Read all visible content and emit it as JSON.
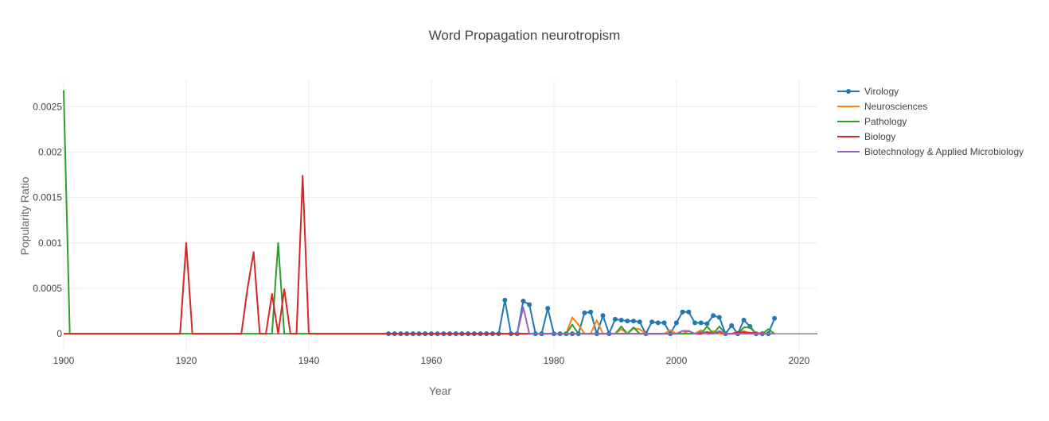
{
  "chart_data": {
    "type": "line",
    "title": "Word Propagation neurotropism",
    "xlabel": "Year",
    "ylabel": "Popularity Ratio",
    "xlim": [
      1900,
      2023
    ],
    "ylim": [
      -0.0002,
      0.0028
    ],
    "xticks": [
      1900,
      1920,
      1940,
      1960,
      1980,
      2000,
      2020
    ],
    "xtick_labels": [
      "1900",
      "1920",
      "1940",
      "1960",
      "1980",
      "2000",
      "2020"
    ],
    "yticks": [
      0,
      0.0005,
      0.001,
      0.0015,
      0.002,
      0.0025
    ],
    "ytick_labels": [
      "0",
      "0.0005",
      "0.001",
      "0.0015",
      "0.002",
      "0.0025"
    ],
    "grid": true,
    "legend_position": "top-right",
    "series": [
      {
        "name": "Virology",
        "color": "#1f77b4",
        "markers": true,
        "x": [
          1953,
          1954,
          1955,
          1956,
          1957,
          1958,
          1959,
          1960,
          1961,
          1962,
          1963,
          1964,
          1965,
          1966,
          1967,
          1968,
          1969,
          1970,
          1971,
          1972,
          1973,
          1974,
          1975,
          1976,
          1977,
          1978,
          1979,
          1980,
          1981,
          1982,
          1983,
          1984,
          1985,
          1986,
          1987,
          1988,
          1989,
          1990,
          1991,
          1992,
          1993,
          1994,
          1995,
          1996,
          1997,
          1998,
          1999,
          2000,
          2001,
          2002,
          2003,
          2004,
          2005,
          2006,
          2007,
          2008,
          2009,
          2010,
          2011,
          2012,
          2013,
          2014,
          2015,
          2016
        ],
        "y": [
          0,
          0,
          0,
          0,
          0,
          0,
          0,
          0,
          0,
          0,
          0,
          0,
          0,
          0,
          0,
          0,
          0,
          0,
          0,
          0.00037,
          0,
          0,
          0.00036,
          0.00032,
          0,
          0,
          0.00028,
          0,
          0,
          0,
          0,
          0,
          0.00023,
          0.00024,
          0,
          0.0002,
          0,
          0.00016,
          0.00015,
          0.00014,
          0.00014,
          0.00013,
          0,
          0.00013,
          0.00012,
          0.00012,
          0,
          0.00012,
          0.00024,
          0.00024,
          0.00012,
          0.00012,
          0.00011,
          0.0002,
          0.00018,
          0,
          9e-05,
          0,
          0.00015,
          8e-05,
          0,
          0,
          0,
          0.00017
        ]
      },
      {
        "name": "Neurosciences",
        "color": "#ff7f0e",
        "markers": false,
        "x": [
          1980,
          1981,
          1982,
          1983,
          1984,
          1985,
          1986,
          1987,
          1988,
          1989,
          1990,
          1991,
          1992,
          1993,
          1994,
          1995,
          1996,
          1997,
          1998,
          1999,
          2000,
          2001,
          2002,
          2003,
          2004,
          2005,
          2006,
          2007,
          2008,
          2009,
          2010,
          2011,
          2012,
          2013,
          2014,
          2015
        ],
        "y": [
          0,
          0,
          0,
          0.00018,
          0.0001,
          0,
          0,
          0.00015,
          0,
          0,
          0,
          5e-05,
          0,
          6e-05,
          5e-05,
          0,
          0,
          0,
          0,
          4e-05,
          0,
          0,
          3e-05,
          0,
          4e-05,
          0,
          3e-05,
          0,
          0,
          0,
          0,
          3e-05,
          0,
          0,
          0,
          0
        ]
      },
      {
        "name": "Pathology",
        "color": "#2ca02c",
        "markers": false,
        "x": [
          1900,
          1901,
          1933,
          1934,
          1935,
          1936,
          1981,
          1982,
          1983,
          1984,
          1989,
          1990,
          1991,
          1992,
          1993,
          1994,
          2003,
          2004,
          2005,
          2006,
          2007,
          2008,
          2009,
          2010,
          2011,
          2012,
          2013,
          2014,
          2015,
          2016
        ],
        "y": [
          0.00268,
          0,
          0,
          0,
          0.001,
          0,
          0,
          0,
          0.0001,
          0,
          0,
          0,
          8e-05,
          0,
          7e-05,
          0,
          0,
          0,
          8e-05,
          0,
          8e-05,
          0,
          0,
          0,
          7e-05,
          7e-05,
          0,
          0,
          5e-05,
          0
        ]
      },
      {
        "name": "Biology",
        "color": "#d62728",
        "markers": false,
        "x": [
          1900,
          1919,
          1920,
          1921,
          1929,
          1930,
          1931,
          1932,
          1933,
          1934,
          1935,
          1936,
          1937,
          1938,
          1939,
          1940,
          1999,
          2000,
          2001,
          2002,
          2003,
          2004,
          2005,
          2006,
          2007,
          2008,
          2009,
          2010,
          2015
        ],
        "y": [
          0,
          0,
          0.001,
          0,
          0,
          0.0005,
          0.0009,
          0,
          0,
          0.00044,
          0,
          0.00049,
          0,
          0,
          0.00174,
          0,
          0,
          0,
          3e-05,
          3e-05,
          0,
          0,
          2e-05,
          0,
          2e-05,
          0,
          0,
          2e-05,
          0
        ]
      },
      {
        "name": "Biotechnology & Applied Microbiology",
        "color": "#9467bd",
        "markers": false,
        "x": [
          1974,
          1975,
          1976,
          1999,
          2000,
          2001,
          2002,
          2003,
          2004,
          2005,
          2006,
          2007,
          2008,
          2016
        ],
        "y": [
          0,
          0.00029,
          0,
          0,
          0,
          3e-05,
          3e-05,
          0,
          2e-05,
          0,
          0,
          3e-05,
          0,
          0
        ]
      }
    ]
  }
}
